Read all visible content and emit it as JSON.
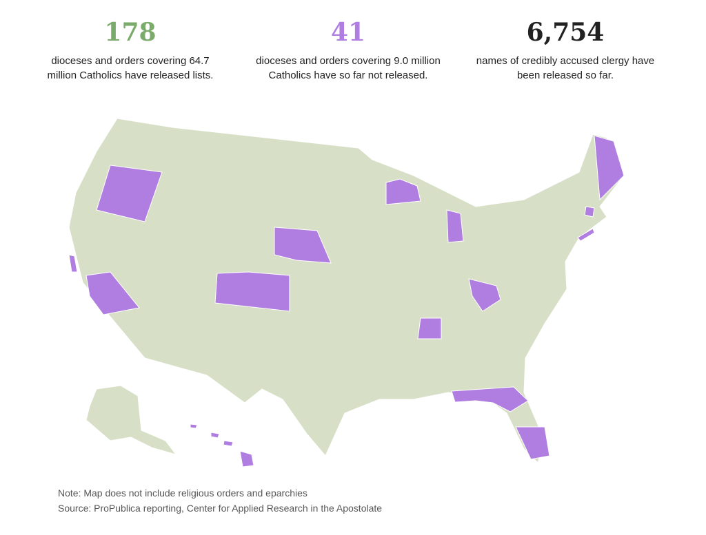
{
  "stats": [
    {
      "number": "178",
      "description": "dioceses and orders covering 64.7 million Catholics have released lists."
    },
    {
      "number": "41",
      "description": "dioceses and orders covering 9.0 million Catholics have so far not released."
    },
    {
      "number": "6,754",
      "description": "names of credibly accused clergy have been released so far."
    }
  ],
  "note": "Note: Map does not include religious orders and eparchies",
  "source": "Source: ProPublica reporting, Center for Applied Research in the Apostolate"
}
